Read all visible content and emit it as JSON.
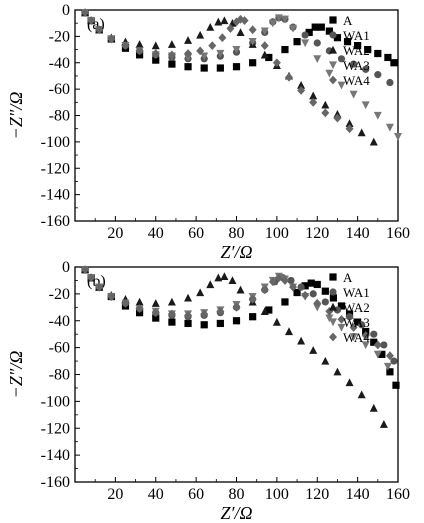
{
  "chart_data": [
    {
      "type": "scatter",
      "panel_label": "(a)",
      "xlabel": "Z′/Ω",
      "ylabel": "−Z″/Ω",
      "xlim": [
        0,
        160
      ],
      "ylim": [
        -160,
        0
      ],
      "x_ticks": [
        20,
        40,
        60,
        80,
        100,
        120,
        140,
        160
      ],
      "y_ticks": [
        -160,
        -140,
        -120,
        -100,
        -80,
        -60,
        -40,
        -20,
        0
      ],
      "grid": false,
      "legend_position": "top-right",
      "series": [
        {
          "name": "A",
          "marker": "square",
          "color": "#000000",
          "x": [
            5,
            8,
            12,
            18,
            25,
            32,
            40,
            48,
            56,
            64,
            72,
            80,
            88,
            96,
            104,
            110,
            116,
            119,
            122,
            126,
            130,
            135,
            140,
            145,
            150,
            155,
            158
          ],
          "y": [
            -2,
            -8,
            -15,
            -22,
            -29,
            -34,
            -38,
            -41,
            -43,
            -44,
            -44,
            -43,
            -40,
            -36,
            -30,
            -24,
            -17,
            -13,
            -13,
            -16,
            -21,
            -24,
            -27,
            -30,
            -33,
            -36,
            -40
          ]
        },
        {
          "name": "WA1",
          "marker": "circle",
          "color": "#555555",
          "x": [
            5,
            8,
            12,
            18,
            25,
            32,
            40,
            48,
            56,
            64,
            72,
            80,
            88,
            94,
            98,
            101,
            104,
            108,
            114,
            120,
            126,
            132,
            138,
            144,
            150,
            156
          ],
          "y": [
            -2,
            -8,
            -15,
            -22,
            -27,
            -31,
            -34,
            -36,
            -37,
            -37,
            -35,
            -32,
            -25,
            -17,
            -9,
            -6,
            -7,
            -13,
            -19,
            -25,
            -31,
            -37,
            -41,
            -45,
            -49,
            -55
          ]
        },
        {
          "name": "WA2",
          "marker": "triangle-up",
          "color": "#1a1a1a",
          "x": [
            5,
            8,
            12,
            18,
            25,
            32,
            40,
            48,
            56,
            62,
            67,
            71,
            74,
            78,
            82,
            88,
            94,
            100,
            106,
            112,
            118,
            124,
            130,
            136,
            142,
            148
          ],
          "y": [
            -2,
            -8,
            -15,
            -21,
            -24,
            -26,
            -27,
            -26,
            -23,
            -19,
            -13,
            -9,
            -8,
            -10,
            -17,
            -26,
            -34,
            -42,
            -50,
            -57,
            -65,
            -72,
            -79,
            -86,
            -93,
            -100
          ]
        },
        {
          "name": "WA3",
          "marker": "triangle-down",
          "color": "#777777",
          "x": [
            5,
            8,
            12,
            18,
            25,
            32,
            40,
            48,
            56,
            64,
            72,
            80,
            88,
            94,
            98,
            101,
            104,
            108,
            114,
            120,
            126,
            132,
            138,
            144,
            150,
            156,
            160
          ],
          "y": [
            -2,
            -8,
            -15,
            -22,
            -27,
            -31,
            -34,
            -35,
            -36,
            -35,
            -33,
            -30,
            -24,
            -16,
            -10,
            -6,
            -7,
            -14,
            -25,
            -37,
            -48,
            -57,
            -64,
            -72,
            -80,
            -89,
            -96
          ]
        },
        {
          "name": "WA4",
          "marker": "diamond",
          "color": "#666666",
          "x": [
            5,
            8,
            12,
            18,
            25,
            32,
            40,
            48,
            56,
            62,
            68,
            73,
            77,
            80,
            82,
            84,
            88,
            94,
            100,
            106,
            112,
            118,
            124,
            130,
            136
          ],
          "y": [
            -2,
            -8,
            -15,
            -22,
            -27,
            -31,
            -33,
            -34,
            -33,
            -31,
            -27,
            -21,
            -14,
            -9,
            -7,
            -8,
            -15,
            -27,
            -40,
            -51,
            -61,
            -70,
            -78,
            -82,
            -90
          ]
        }
      ]
    },
    {
      "type": "scatter",
      "panel_label": "(b)",
      "xlabel": "Z′/Ω",
      "ylabel": "−Z″/Ω",
      "xlim": [
        0,
        160
      ],
      "ylim": [
        -160,
        0
      ],
      "x_ticks": [
        20,
        40,
        60,
        80,
        100,
        120,
        140,
        160
      ],
      "y_ticks": [
        -160,
        -140,
        -120,
        -100,
        -80,
        -60,
        -40,
        -20,
        0
      ],
      "grid": false,
      "legend_position": "top-right",
      "series": [
        {
          "name": "A",
          "marker": "square",
          "color": "#000000",
          "x": [
            5,
            8,
            12,
            18,
            25,
            32,
            40,
            48,
            56,
            64,
            72,
            80,
            88,
            96,
            104,
            110,
            114,
            117,
            120,
            124,
            128,
            132,
            136,
            140,
            144,
            148,
            152,
            156,
            159
          ],
          "y": [
            -2,
            -8,
            -15,
            -22,
            -29,
            -34,
            -38,
            -41,
            -42,
            -43,
            -42,
            -40,
            -37,
            -32,
            -26,
            -19,
            -14,
            -12,
            -13,
            -18,
            -23,
            -29,
            -35,
            -41,
            -48,
            -56,
            -65,
            -78,
            -88
          ]
        },
        {
          "name": "WA1",
          "marker": "circle",
          "color": "#555555",
          "x": [
            5,
            8,
            12,
            18,
            25,
            32,
            40,
            48,
            56,
            64,
            72,
            80,
            88,
            94,
            99,
            103,
            107,
            112,
            118,
            124,
            130,
            136,
            142,
            148,
            153,
            158
          ],
          "y": [
            -2,
            -8,
            -15,
            -22,
            -27,
            -31,
            -34,
            -36,
            -37,
            -36,
            -34,
            -30,
            -24,
            -17,
            -11,
            -8,
            -10,
            -15,
            -20,
            -26,
            -32,
            -37,
            -43,
            -50,
            -58,
            -70
          ]
        },
        {
          "name": "WA2",
          "marker": "triangle-up",
          "color": "#1a1a1a",
          "x": [
            5,
            8,
            12,
            18,
            25,
            32,
            40,
            48,
            56,
            62,
            67,
            71,
            74,
            78,
            82,
            88,
            94,
            100,
            106,
            112,
            118,
            124,
            130,
            136,
            142,
            148,
            153
          ],
          "y": [
            -2,
            -8,
            -15,
            -21,
            -24,
            -26,
            -27,
            -26,
            -23,
            -19,
            -13,
            -8,
            -7,
            -10,
            -17,
            -26,
            -33,
            -41,
            -48,
            -55,
            -62,
            -70,
            -78,
            -86,
            -95,
            -105,
            -117
          ]
        },
        {
          "name": "WA3",
          "marker": "triangle-down",
          "color": "#777777",
          "x": [
            5,
            8,
            12,
            18,
            25,
            32,
            40,
            48,
            56,
            64,
            72,
            80,
            88,
            94,
            98,
            101,
            104,
            108,
            114,
            120,
            126,
            132,
            138,
            144,
            150,
            155
          ],
          "y": [
            -2,
            -8,
            -15,
            -22,
            -27,
            -31,
            -33,
            -35,
            -35,
            -34,
            -32,
            -28,
            -22,
            -15,
            -10,
            -7,
            -9,
            -15,
            -22,
            -30,
            -38,
            -45,
            -52,
            -58,
            -65,
            -74
          ]
        },
        {
          "name": "WA4",
          "marker": "diamond",
          "color": "#666666",
          "x": [
            5,
            8,
            12,
            18,
            25,
            32,
            40,
            48,
            56,
            64,
            72,
            80,
            88,
            94,
            98,
            101,
            104,
            108,
            114,
            120,
            126,
            132,
            138,
            144,
            150,
            156
          ],
          "y": [
            -2,
            -8,
            -15,
            -22,
            -27,
            -31,
            -34,
            -35,
            -36,
            -35,
            -33,
            -30,
            -24,
            -17,
            -11,
            -8,
            -10,
            -15,
            -21,
            -27,
            -33,
            -39,
            -45,
            -51,
            -58,
            -66
          ]
        }
      ]
    }
  ]
}
